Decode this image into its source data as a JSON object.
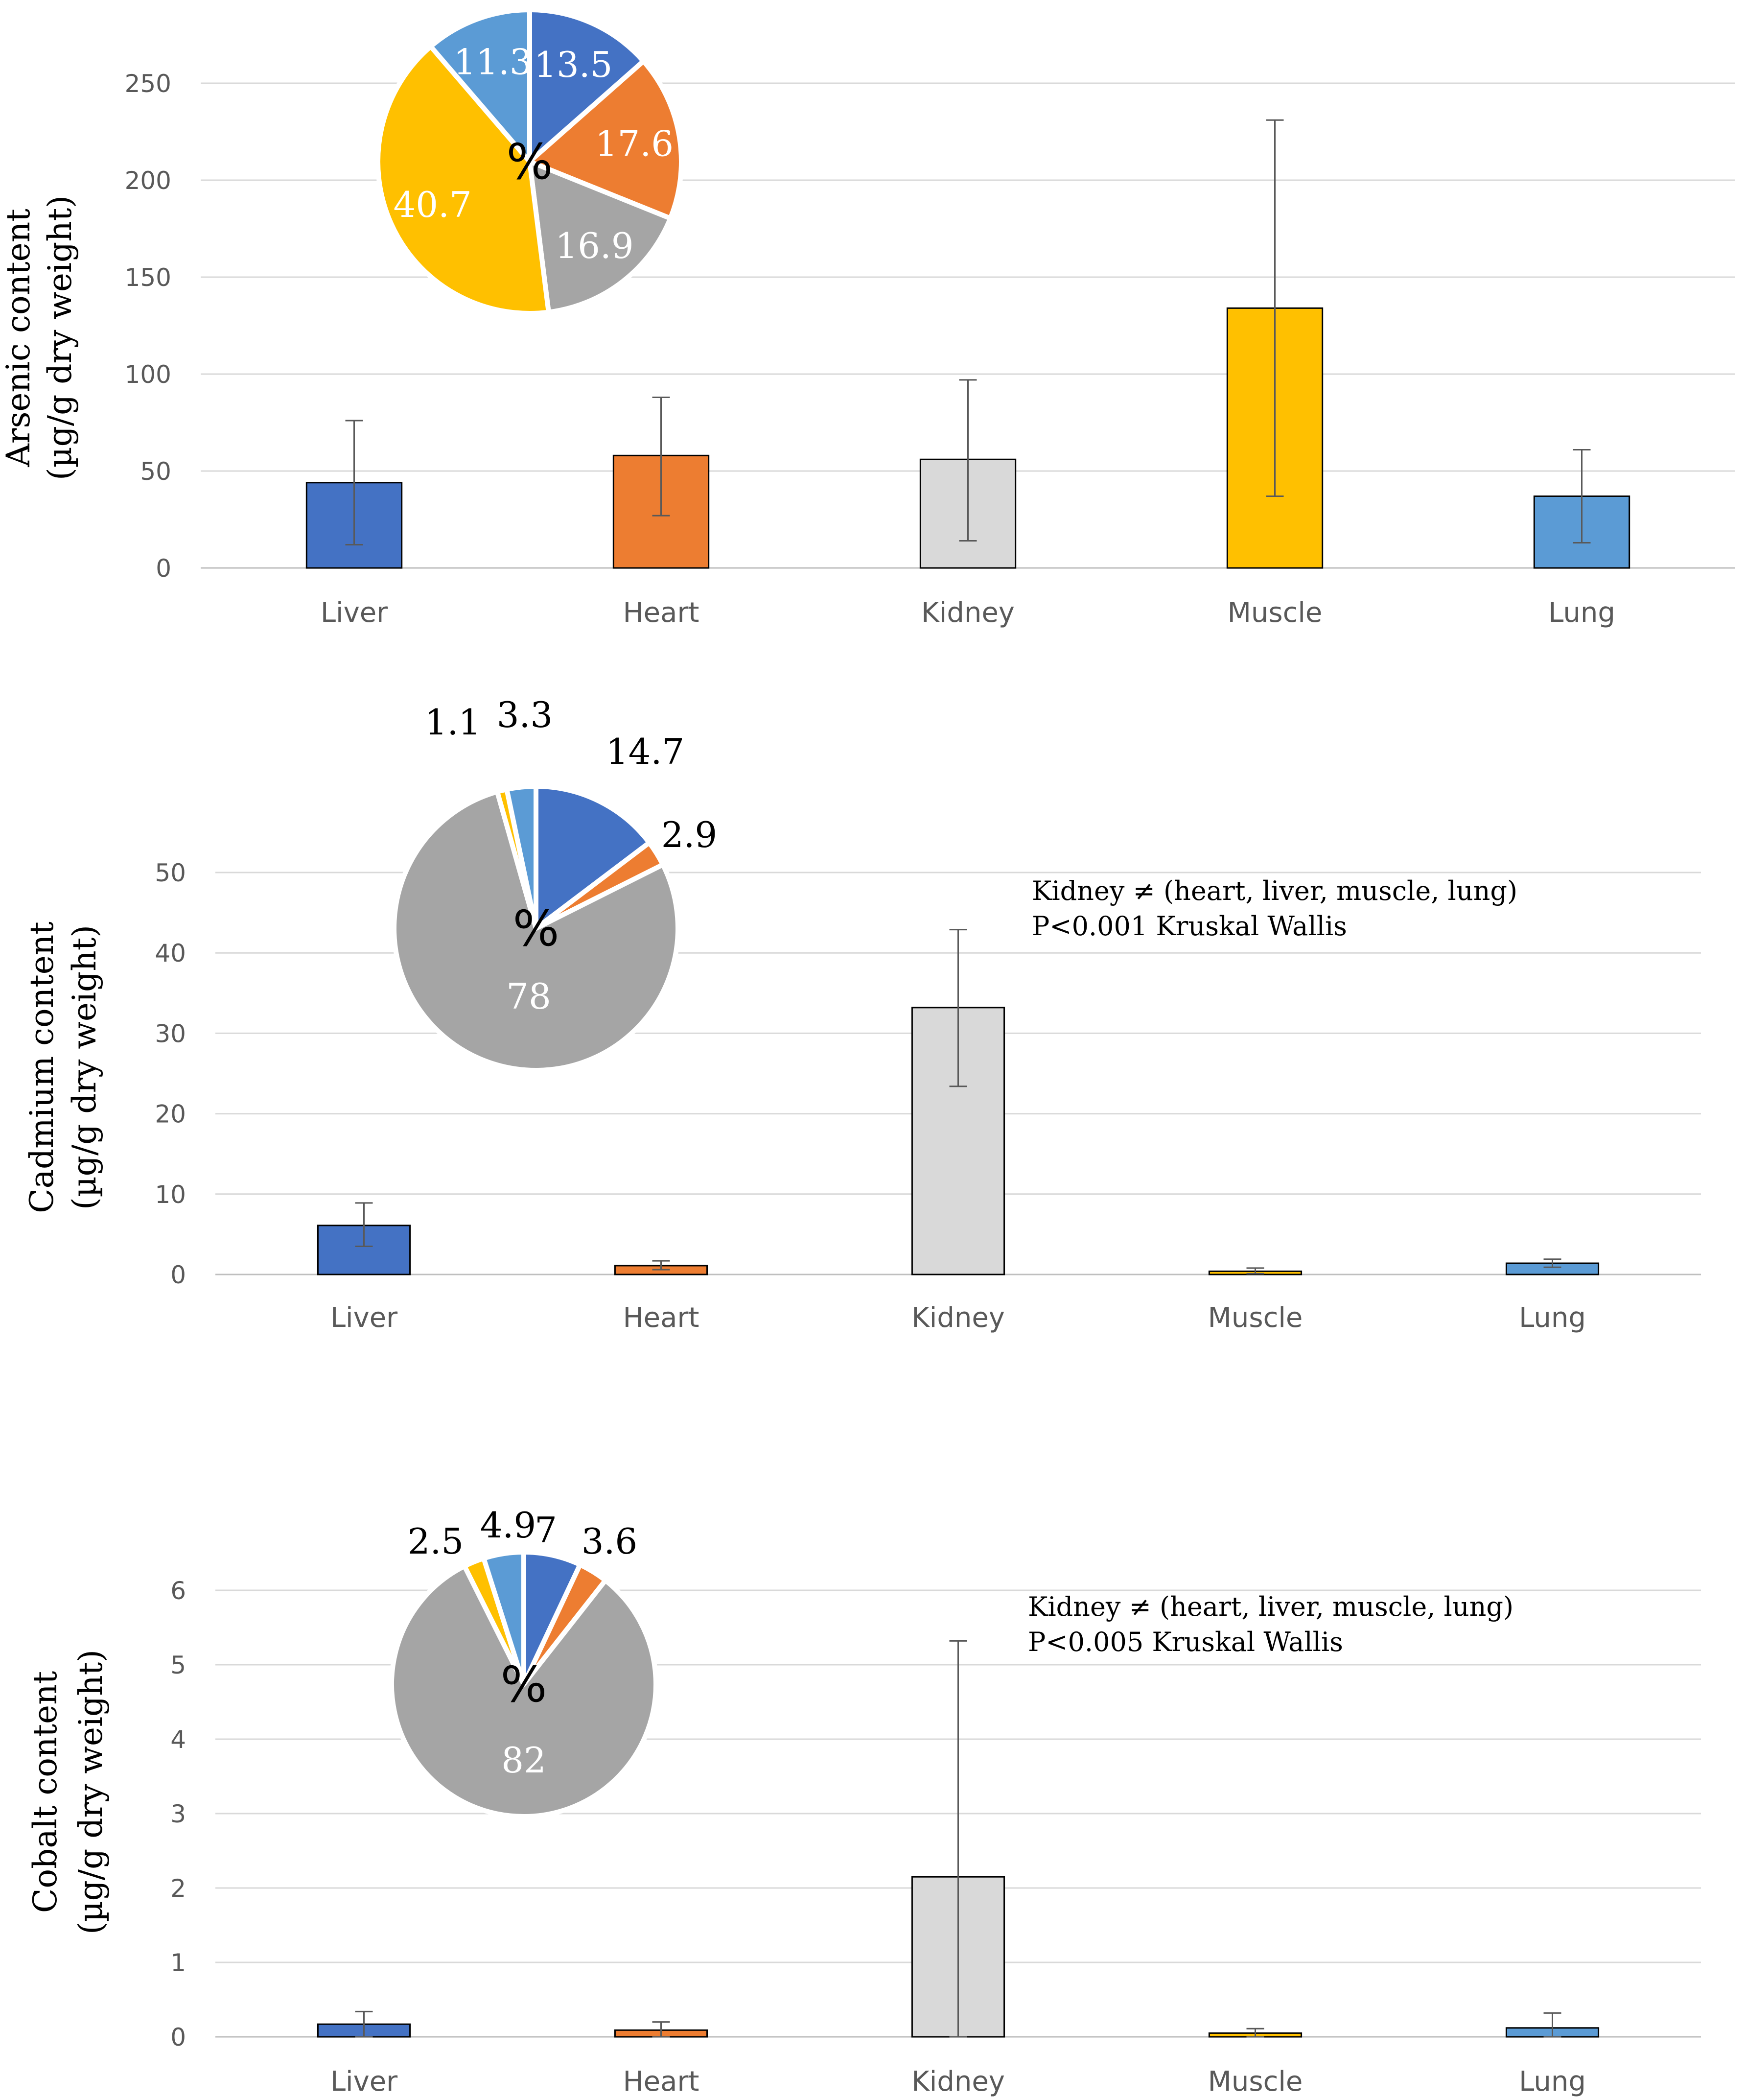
{
  "charts_meta": {
    "categories_order": [
      "Liver",
      "Heart",
      "Kidney",
      "Muscle",
      "Lung"
    ]
  },
  "chart_data": [
    {
      "type": "bar",
      "id": "arsenic",
      "ylabel_line1": "Arsenic content",
      "ylabel_line2": "(µg/g dry weight)",
      "categories": [
        "Liver",
        "Heart",
        "Kidney",
        "Muscle",
        "Lung"
      ],
      "values": [
        44,
        58,
        56,
        134,
        37
      ],
      "error_low": [
        12,
        27,
        14,
        37,
        13
      ],
      "error_high": [
        76,
        88,
        97,
        231,
        61
      ],
      "ylim": [
        0,
        250
      ],
      "yticks": [
        0,
        50,
        100,
        150,
        200,
        250
      ],
      "colors": [
        "#4472C4",
        "#ED7D31",
        "#D9D9D9",
        "#FFC000",
        "#5B9BD5"
      ],
      "annotation": [],
      "pie": {
        "center_label": "%",
        "slices": [
          {
            "label": "13.5",
            "value": 13.5,
            "color": "#4472C4"
          },
          {
            "label": "17.6",
            "value": 17.6,
            "color": "#ED7D31"
          },
          {
            "label": "16.9",
            "value": 16.9,
            "color": "#A5A5A5"
          },
          {
            "label": "40.7",
            "value": 40.7,
            "color": "#FFC000"
          },
          {
            "label": "11.3",
            "value": 11.3,
            "color": "#5B9BD5"
          }
        ]
      }
    },
    {
      "type": "bar",
      "id": "cadmium",
      "ylabel_line1": "Cadmium content",
      "ylabel_line2": "(µg/g dry weight)",
      "categories": [
        "Liver",
        "Heart",
        "Kidney",
        "Muscle",
        "Lung"
      ],
      "values": [
        6.1,
        1.1,
        33.2,
        0.4,
        1.4
      ],
      "error_low": [
        3.5,
        0.6,
        23.4,
        0.1,
        0.9
      ],
      "error_high": [
        8.9,
        1.7,
        42.9,
        0.8,
        1.9
      ],
      "ylim": [
        0,
        50
      ],
      "yticks": [
        0,
        10,
        20,
        30,
        40,
        50
      ],
      "colors": [
        "#4472C4",
        "#ED7D31",
        "#D9D9D9",
        "#FFC000",
        "#5B9BD5"
      ],
      "annotation": [
        "Kidney ≠ (heart, liver, muscle, lung)",
        "P<0.001 Kruskal Wallis"
      ],
      "pie": {
        "center_label": "%",
        "slices": [
          {
            "label": "14.7",
            "value": 14.7,
            "color": "#4472C4"
          },
          {
            "label": "2.9",
            "value": 2.9,
            "color": "#ED7D31"
          },
          {
            "label": "78",
            "value": 78,
            "color": "#A5A5A5"
          },
          {
            "label": "1.1",
            "value": 1.1,
            "color": "#FFC000"
          },
          {
            "label": "3.3",
            "value": 3.3,
            "color": "#5B9BD5"
          }
        ]
      }
    },
    {
      "type": "bar",
      "id": "cobalt",
      "ylabel_line1": "Cobalt content",
      "ylabel_line2": "(µg/g dry weight)",
      "categories": [
        "Liver",
        "Heart",
        "Kidney",
        "Muscle",
        "Lung"
      ],
      "values": [
        0.17,
        0.09,
        2.15,
        0.05,
        0.12
      ],
      "error_low": [
        0.0,
        0.0,
        0.0,
        0.0,
        0.0
      ],
      "error_high": [
        0.34,
        0.2,
        5.32,
        0.11,
        0.32
      ],
      "ylim": [
        0,
        6
      ],
      "yticks": [
        0,
        1,
        2,
        3,
        4,
        5,
        6
      ],
      "colors": [
        "#4472C4",
        "#ED7D31",
        "#D9D9D9",
        "#FFC000",
        "#5B9BD5"
      ],
      "annotation": [
        "Kidney ≠ (heart, liver, muscle, lung)",
        "P<0.005 Kruskal Wallis"
      ],
      "pie": {
        "center_label": "%",
        "slices": [
          {
            "label": "7",
            "value": 7,
            "color": "#4472C4"
          },
          {
            "label": "3.6",
            "value": 3.6,
            "color": "#ED7D31"
          },
          {
            "label": "82",
            "value": 82,
            "color": "#A5A5A5"
          },
          {
            "label": "2.5",
            "value": 2.5,
            "color": "#FFC000"
          },
          {
            "label": "4.9",
            "value": 4.9,
            "color": "#5B9BD5"
          }
        ]
      }
    }
  ]
}
